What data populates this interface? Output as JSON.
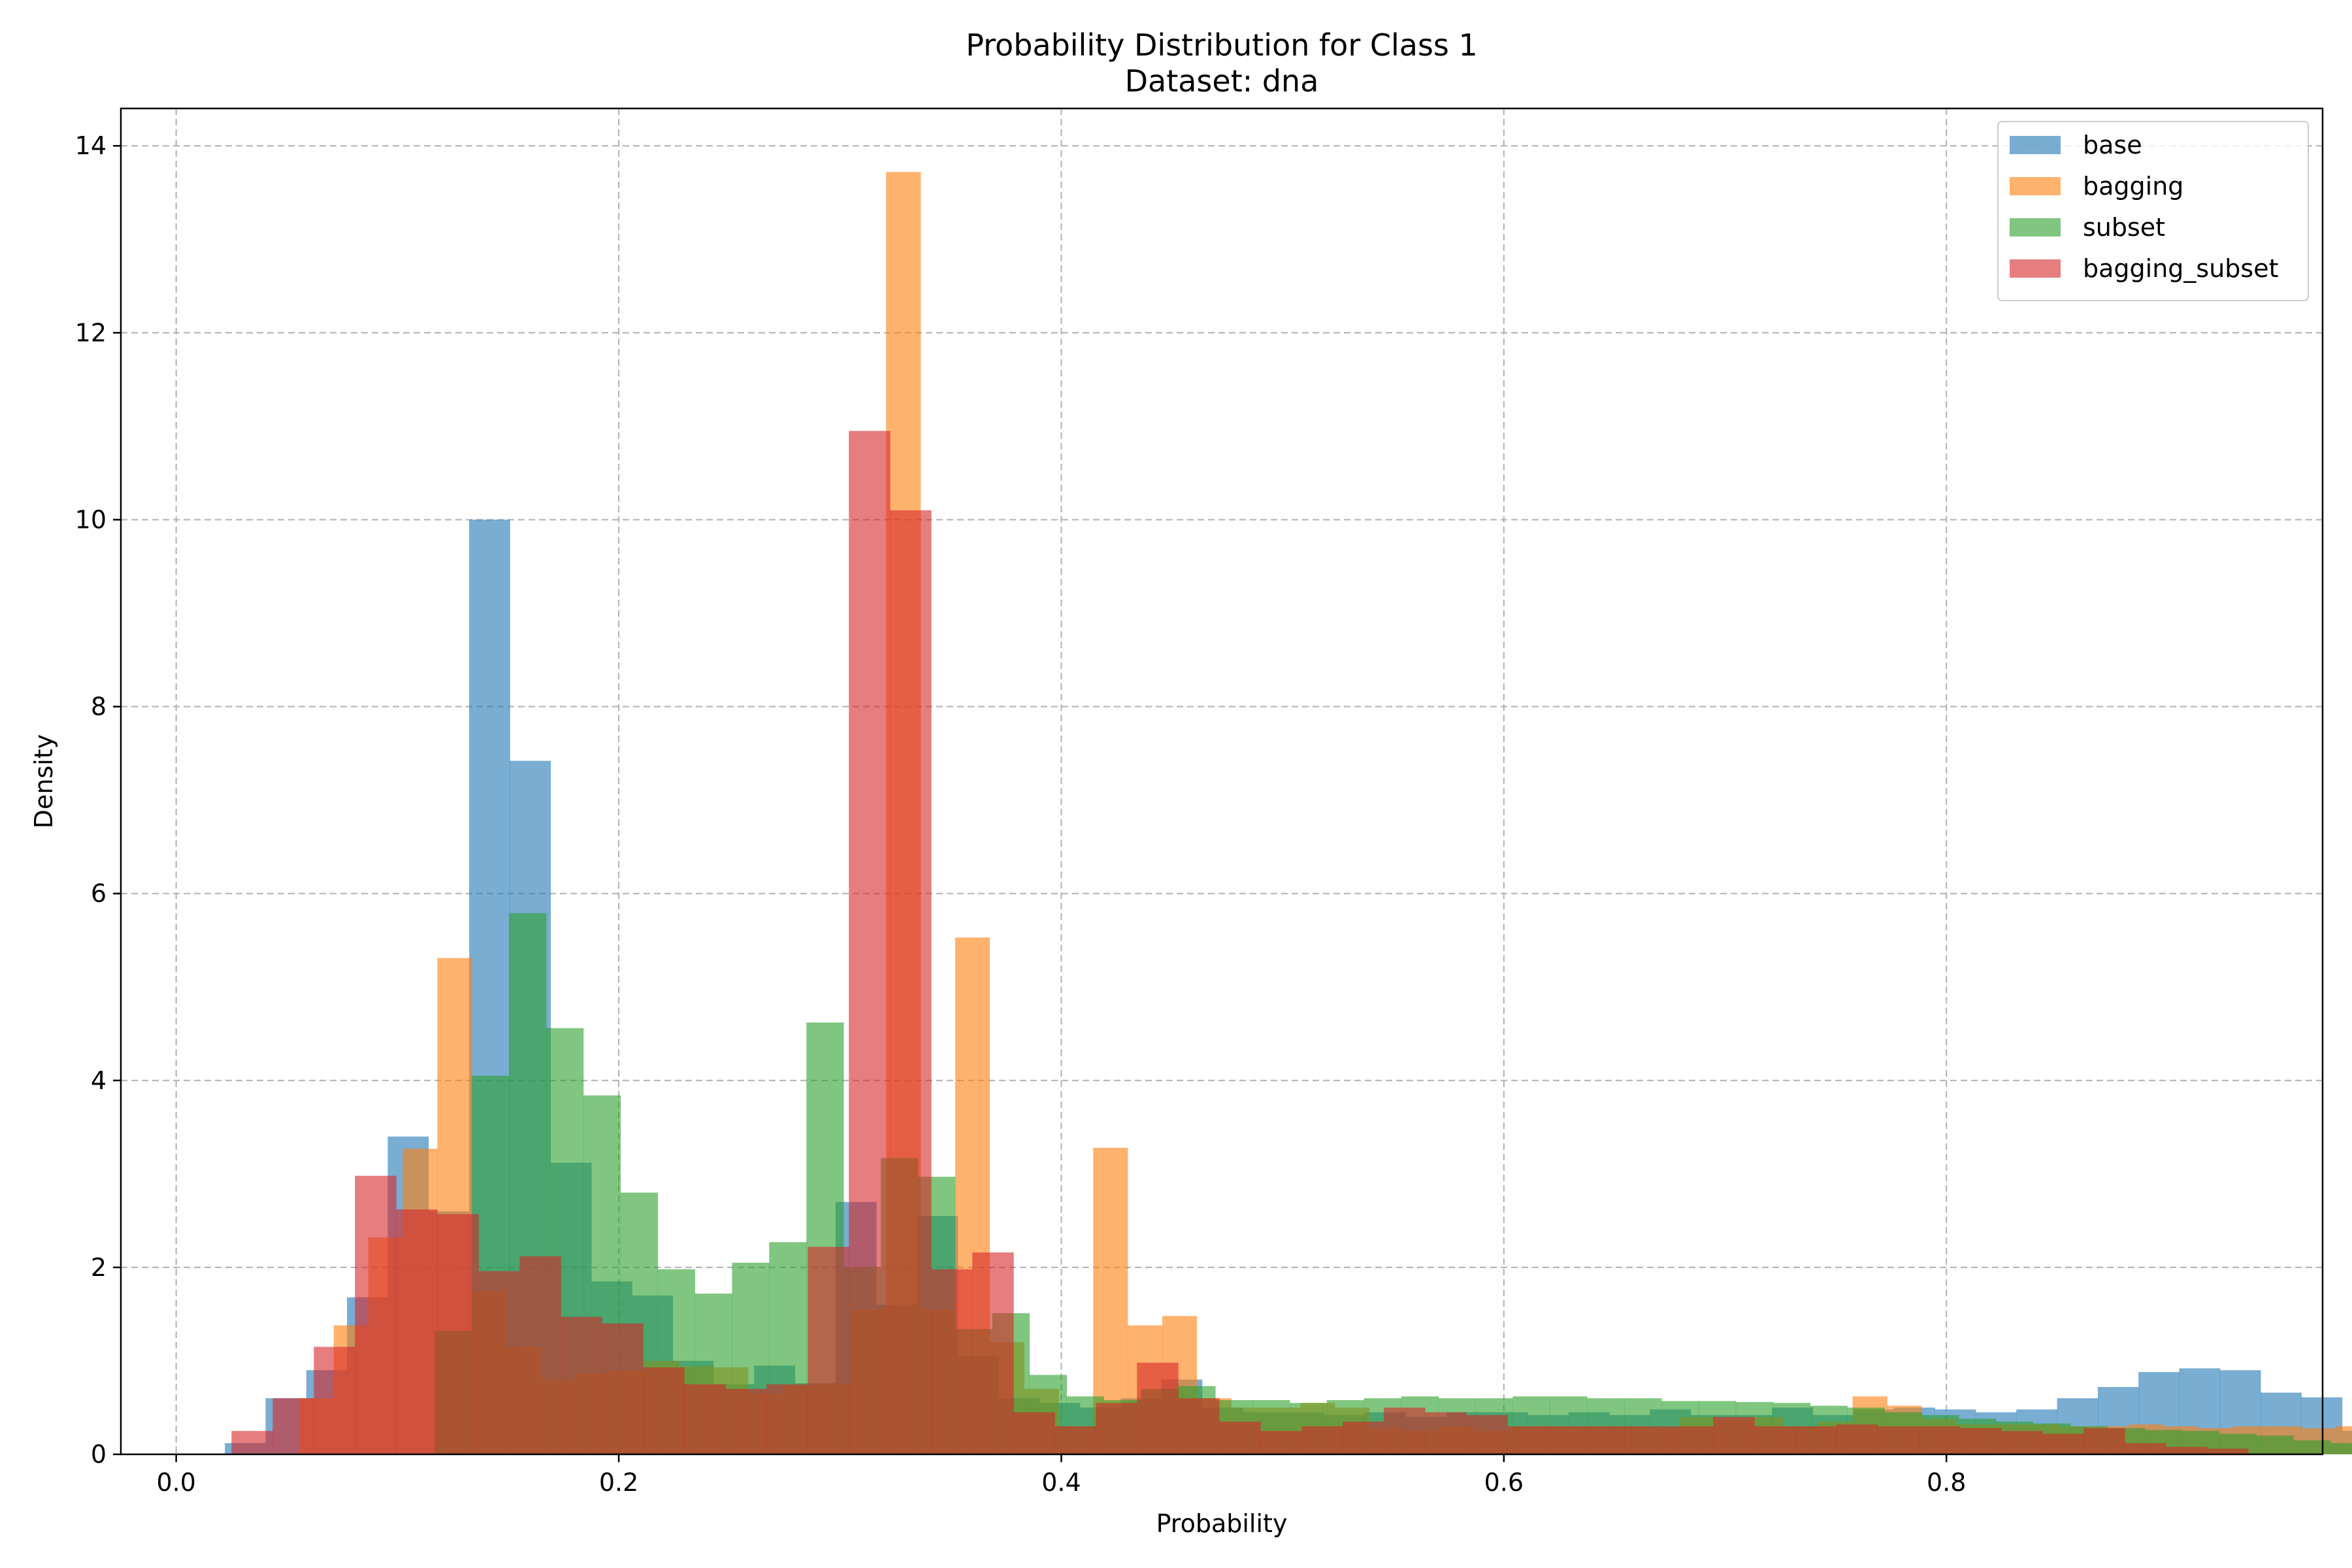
{
  "chart_data": {
    "type": "bar",
    "title": "Probability Distribution for Class 1",
    "subtitle": "Dataset: dna",
    "xlabel": "Probability",
    "ylabel": "Density",
    "xlim": [
      -0.025,
      0.97
    ],
    "ylim": [
      0,
      14.4
    ],
    "xticks": [
      0.0,
      0.2,
      0.4,
      0.6,
      0.8
    ],
    "xtick_labels": [
      "0.0",
      "0.2",
      "0.4",
      "0.6",
      "0.8"
    ],
    "yticks": [
      0,
      2,
      4,
      6,
      8,
      10,
      12,
      14
    ],
    "ytick_labels": [
      "0",
      "2",
      "4",
      "6",
      "8",
      "10",
      "12",
      "14"
    ],
    "grid": true,
    "legend_position": "top-right",
    "series": [
      {
        "name": "base",
        "color": "#1f77b4",
        "x_start": 0.022,
        "bin_width": 0.0184,
        "values": [
          0.12,
          0.6,
          0.9,
          1.68,
          3.4,
          2.6,
          10.0,
          7.42,
          3.12,
          1.85,
          1.7,
          1.0,
          0.75,
          0.95,
          0.76,
          2.7,
          1.6,
          2.55,
          1.05,
          0.6,
          0.55,
          0.5,
          0.6,
          0.8,
          0.5,
          0.45,
          0.45,
          0.42,
          0.45,
          0.4,
          0.45,
          0.45,
          0.42,
          0.45,
          0.42,
          0.48,
          0.42,
          0.42,
          0.5,
          0.42,
          0.48,
          0.5,
          0.48,
          0.45,
          0.48,
          0.6,
          0.72,
          0.88,
          0.92,
          0.9,
          0.66,
          0.61,
          0.25,
          0.16,
          0.06
        ]
      },
      {
        "name": "bagging",
        "color": "#ff7f0e",
        "x_start": 0.04,
        "bin_width": 0.0156,
        "values": [
          0.0,
          0.6,
          1.38,
          2.32,
          3.27,
          5.31,
          1.75,
          1.15,
          0.8,
          0.87,
          0.9,
          1.0,
          0.94,
          0.93,
          0.65,
          0.74,
          0.75,
          1.55,
          13.72,
          1.55,
          5.53,
          1.2,
          0.7,
          0.3,
          3.28,
          1.38,
          1.48,
          0.6,
          0.5,
          0.5,
          0.55,
          0.5,
          0.28,
          0.25,
          0.3,
          0.25,
          0.3,
          0.3,
          0.3,
          0.3,
          0.28,
          0.4,
          0.38,
          0.4,
          0.3,
          0.35,
          0.62,
          0.52,
          0.38,
          0.32,
          0.32,
          0.32,
          0.3,
          0.3,
          0.32,
          0.3,
          0.28,
          0.3,
          0.3,
          0.28,
          0.3,
          0.3,
          0.3,
          0.28,
          0.3,
          0.3,
          0.3,
          0.28,
          0.3,
          0.28,
          0.2,
          0.15,
          0.08
        ]
      },
      {
        "name": "subset",
        "color": "#2ca02c",
        "x_start": 0.1,
        "bin_width": 0.0168,
        "values": [
          0.0,
          1.32,
          4.05,
          5.79,
          4.56,
          3.84,
          2.8,
          1.98,
          1.72,
          2.05,
          2.27,
          4.62,
          2.0,
          3.17,
          2.97,
          1.34,
          1.51,
          0.85,
          0.62,
          0.58,
          0.7,
          0.73,
          0.58,
          0.58,
          0.55,
          0.58,
          0.6,
          0.62,
          0.6,
          0.6,
          0.62,
          0.62,
          0.6,
          0.6,
          0.57,
          0.57,
          0.56,
          0.55,
          0.52,
          0.5,
          0.45,
          0.42,
          0.38,
          0.35,
          0.33,
          0.3,
          0.28,
          0.26,
          0.25,
          0.22,
          0.2,
          0.15,
          0.12
        ]
      },
      {
        "name": "bagging_subset",
        "color": "#d62728",
        "x_start": 0.025,
        "bin_width": 0.0186,
        "values": [
          0.25,
          0.6,
          1.15,
          2.98,
          2.62,
          2.57,
          1.96,
          2.12,
          1.47,
          1.4,
          0.93,
          0.75,
          0.7,
          0.75,
          2.22,
          10.95,
          10.1,
          1.98,
          2.16,
          0.45,
          0.3,
          0.55,
          0.98,
          0.6,
          0.35,
          0.25,
          0.3,
          0.35,
          0.5,
          0.45,
          0.42,
          0.3,
          0.3,
          0.3,
          0.3,
          0.3,
          0.4,
          0.3,
          0.3,
          0.32,
          0.3,
          0.3,
          0.28,
          0.25,
          0.22,
          0.28,
          0.12,
          0.08,
          0.06
        ]
      }
    ]
  }
}
